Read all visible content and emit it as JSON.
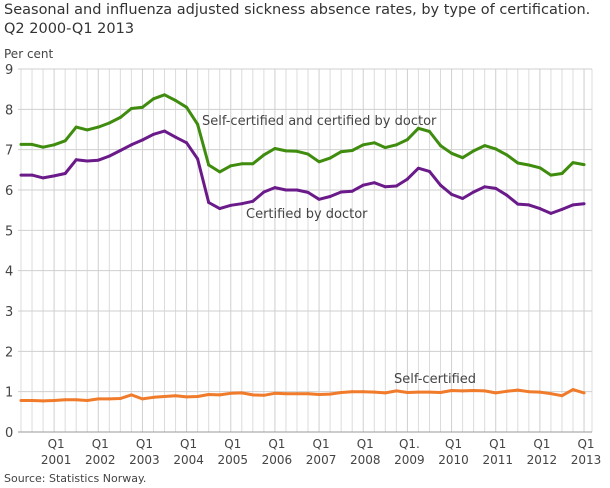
{
  "chart_data": {
    "type": "line",
    "title": "Seasonal and influenza adjusted sickness absence rates, by type of certification.",
    "subtitle": "Q2 2000-Q1 2013",
    "ylabel": "Per cent",
    "source": "Source: Statistics Norway.",
    "ylim": [
      0,
      9
    ],
    "yticks": [
      "0",
      "1",
      "2",
      "3",
      "4",
      "5",
      "6",
      "7",
      "8",
      "9"
    ],
    "grid": true,
    "x": [
      "2000Q2",
      "2000Q3",
      "2000Q4",
      "2001Q1",
      "2001Q2",
      "2001Q3",
      "2001Q4",
      "2002Q1",
      "2002Q2",
      "2002Q3",
      "2002Q4",
      "2003Q1",
      "2003Q2",
      "2003Q3",
      "2003Q4",
      "2004Q1",
      "2004Q2",
      "2004Q3",
      "2004Q4",
      "2005Q1",
      "2005Q2",
      "2005Q3",
      "2005Q4",
      "2006Q1",
      "2006Q2",
      "2006Q3",
      "2006Q4",
      "2007Q1",
      "2007Q2",
      "2007Q3",
      "2007Q4",
      "2008Q1",
      "2008Q2",
      "2008Q3",
      "2008Q4",
      "2009Q1",
      "2009Q2",
      "2009Q3",
      "2009Q4",
      "2010Q1",
      "2010Q2",
      "2010Q3",
      "2010Q4",
      "2011Q1",
      "2011Q2",
      "2011Q3",
      "2011Q4",
      "2012Q1",
      "2012Q2",
      "2012Q3",
      "2012Q4",
      "2013Q1"
    ],
    "xticks": [
      {
        "q": "Q1",
        "year": "2001",
        "index": 3
      },
      {
        "q": "Q1",
        "year": "2002",
        "index": 7
      },
      {
        "q": "Q1",
        "year": "2003",
        "index": 11
      },
      {
        "q": "Q1",
        "year": "2004",
        "index": 15
      },
      {
        "q": "Q1",
        "year": "2005",
        "index": 19
      },
      {
        "q": "Q1",
        "year": "2006",
        "index": 23
      },
      {
        "q": "Q1",
        "year": "2007",
        "index": 27
      },
      {
        "q": "Q1",
        "year": "2008",
        "index": 31
      },
      {
        "q": "Q1.",
        "year": "2009",
        "index": 35
      },
      {
        "q": "Q1",
        "year": "2010",
        "index": 39
      },
      {
        "q": "Q1",
        "year": "2011",
        "index": 43
      },
      {
        "q": "Q1",
        "year": "2012",
        "index": 47
      },
      {
        "q": "Q1",
        "year": "2013",
        "index": 51
      }
    ],
    "series": [
      {
        "name": "Self-certified and certified by doctor",
        "color": "#3f8c0e",
        "values": [
          7.13,
          7.13,
          7.06,
          7.12,
          7.22,
          7.56,
          7.49,
          7.56,
          7.66,
          7.8,
          8.02,
          8.05,
          8.26,
          8.36,
          8.22,
          8.05,
          7.63,
          6.62,
          6.45,
          6.6,
          6.65,
          6.65,
          6.87,
          7.03,
          6.97,
          6.96,
          6.89,
          6.7,
          6.79,
          6.95,
          6.98,
          7.12,
          7.17,
          7.05,
          7.12,
          7.25,
          7.53,
          7.45,
          7.1,
          6.91,
          6.8,
          6.97,
          7.1,
          7.02,
          6.87,
          6.67,
          6.62,
          6.55,
          6.37,
          6.41,
          6.68,
          6.63
        ]
      },
      {
        "name": "Certified by doctor",
        "color": "#6b1a8a",
        "values": [
          6.37,
          6.37,
          6.3,
          6.35,
          6.41,
          6.75,
          6.72,
          6.74,
          6.84,
          6.98,
          7.12,
          7.24,
          7.38,
          7.46,
          7.31,
          7.17,
          6.77,
          5.69,
          5.54,
          5.62,
          5.66,
          5.72,
          5.95,
          6.06,
          6.0,
          6.0,
          5.94,
          5.77,
          5.84,
          5.95,
          5.97,
          6.12,
          6.18,
          6.08,
          6.1,
          6.27,
          6.54,
          6.46,
          6.12,
          5.89,
          5.79,
          5.95,
          6.08,
          6.04,
          5.87,
          5.65,
          5.63,
          5.54,
          5.42,
          5.52,
          5.63,
          5.66
        ]
      },
      {
        "name": "Self-certified",
        "color": "#f07b2a",
        "values": [
          0.78,
          0.78,
          0.77,
          0.78,
          0.8,
          0.8,
          0.78,
          0.82,
          0.82,
          0.83,
          0.92,
          0.82,
          0.86,
          0.88,
          0.9,
          0.87,
          0.88,
          0.93,
          0.92,
          0.96,
          0.97,
          0.92,
          0.91,
          0.96,
          0.95,
          0.95,
          0.95,
          0.93,
          0.94,
          0.98,
          1.0,
          1.0,
          0.99,
          0.97,
          1.02,
          0.98,
          0.99,
          0.99,
          0.98,
          1.03,
          1.02,
          1.03,
          1.02,
          0.97,
          1.01,
          1.04,
          1.0,
          0.99,
          0.95,
          0.9,
          1.05,
          0.97
        ]
      }
    ]
  }
}
